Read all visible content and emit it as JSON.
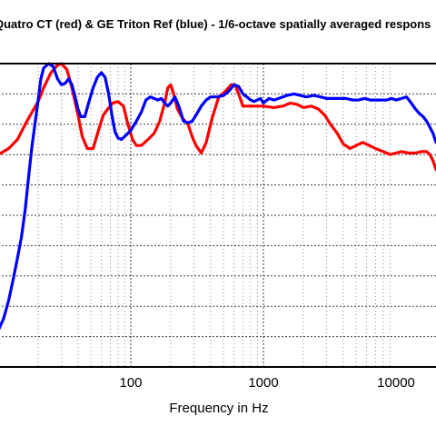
{
  "chart_data": {
    "type": "line",
    "title": "Quatro CT (red) & GE Triton Ref (blue) - 1/6-octave spatially averaged respons",
    "xlabel": "Frequency  in Hz",
    "ylabel": "",
    "x_scale": "log",
    "xlim": [
      10,
      20000
    ],
    "ylim": [
      0,
      10
    ],
    "grid": true,
    "x_ticks": [
      {
        "value": 100,
        "label": "100"
      },
      {
        "value": 1000,
        "label": "1000"
      },
      {
        "value": 10000,
        "label": "10000"
      }
    ],
    "series": [
      {
        "color": "#ff0000",
        "points": [
          [
            10,
            7.0
          ],
          [
            12,
            7.2
          ],
          [
            14,
            7.5
          ],
          [
            16,
            8.0
          ],
          [
            18,
            8.4
          ],
          [
            20,
            8.75
          ],
          [
            22,
            9.2
          ],
          [
            25,
            9.7
          ],
          [
            28,
            9.95
          ],
          [
            30,
            10.0
          ],
          [
            33,
            9.8
          ],
          [
            36,
            9.2
          ],
          [
            40,
            8.3
          ],
          [
            43,
            7.6
          ],
          [
            47,
            7.2
          ],
          [
            52,
            7.2
          ],
          [
            57,
            7.8
          ],
          [
            62,
            8.3
          ],
          [
            67,
            8.5
          ],
          [
            73,
            8.7
          ],
          [
            80,
            8.75
          ],
          [
            88,
            8.6
          ],
          [
            95,
            8.0
          ],
          [
            103,
            7.5
          ],
          [
            110,
            7.3
          ],
          [
            120,
            7.3
          ],
          [
            135,
            7.5
          ],
          [
            150,
            7.7
          ],
          [
            165,
            8.1
          ],
          [
            180,
            8.7
          ],
          [
            190,
            9.2
          ],
          [
            200,
            9.3
          ],
          [
            210,
            9.0
          ],
          [
            225,
            8.5
          ],
          [
            245,
            8.2
          ],
          [
            270,
            8.0
          ],
          [
            290,
            7.6
          ],
          [
            310,
            7.3
          ],
          [
            340,
            7.05
          ],
          [
            370,
            7.4
          ],
          [
            410,
            8.2
          ],
          [
            460,
            8.9
          ],
          [
            520,
            9.1
          ],
          [
            570,
            9.3
          ],
          [
            610,
            9.3
          ],
          [
            650,
            9.0
          ],
          [
            700,
            8.6
          ],
          [
            800,
            8.6
          ],
          [
            900,
            8.6
          ],
          [
            1000,
            8.6
          ],
          [
            1200,
            8.55
          ],
          [
            1400,
            8.6
          ],
          [
            1600,
            8.7
          ],
          [
            1800,
            8.65
          ],
          [
            2000,
            8.55
          ],
          [
            2300,
            8.6
          ],
          [
            2600,
            8.5
          ],
          [
            2900,
            8.3
          ],
          [
            3200,
            8.0
          ],
          [
            3600,
            7.7
          ],
          [
            4000,
            7.35
          ],
          [
            4500,
            7.2
          ],
          [
            5000,
            7.3
          ],
          [
            5600,
            7.4
          ],
          [
            6300,
            7.3
          ],
          [
            7000,
            7.2
          ],
          [
            8000,
            7.1
          ],
          [
            9000,
            7.0
          ],
          [
            10000,
            7.05
          ],
          [
            11000,
            7.1
          ],
          [
            12500,
            7.05
          ],
          [
            14000,
            7.05
          ],
          [
            15500,
            7.1
          ],
          [
            17000,
            7.1
          ],
          [
            18000,
            7.0
          ],
          [
            19000,
            6.8
          ],
          [
            20000,
            6.5
          ]
        ]
      },
      {
        "color": "#0000ff",
        "points": [
          [
            10,
            1.2
          ],
          [
            11,
            1.6
          ],
          [
            12,
            2.2
          ],
          [
            13,
            2.9
          ],
          [
            14,
            3.6
          ],
          [
            15,
            4.3
          ],
          [
            16,
            5.2
          ],
          [
            17,
            6.3
          ],
          [
            18,
            7.3
          ],
          [
            20,
            8.8
          ],
          [
            21,
            9.5
          ],
          [
            22,
            9.85
          ],
          [
            24,
            10.0
          ],
          [
            26,
            9.9
          ],
          [
            28,
            9.5
          ],
          [
            30,
            9.3
          ],
          [
            32,
            9.35
          ],
          [
            34,
            9.5
          ],
          [
            36,
            9.3
          ],
          [
            38,
            8.9
          ],
          [
            40,
            8.5
          ],
          [
            42,
            8.25
          ],
          [
            45,
            8.25
          ],
          [
            48,
            8.7
          ],
          [
            52,
            9.2
          ],
          [
            56,
            9.55
          ],
          [
            60,
            9.7
          ],
          [
            64,
            9.55
          ],
          [
            68,
            9.0
          ],
          [
            72,
            8.3
          ],
          [
            76,
            7.75
          ],
          [
            80,
            7.55
          ],
          [
            85,
            7.5
          ],
          [
            90,
            7.6
          ],
          [
            95,
            7.7
          ],
          [
            100,
            7.8
          ],
          [
            110,
            8.1
          ],
          [
            120,
            8.4
          ],
          [
            130,
            8.8
          ],
          [
            140,
            8.9
          ],
          [
            150,
            8.85
          ],
          [
            160,
            8.8
          ],
          [
            170,
            8.85
          ],
          [
            180,
            8.7
          ],
          [
            190,
            8.6
          ],
          [
            200,
            8.7
          ],
          [
            215,
            8.9
          ],
          [
            230,
            8.6
          ],
          [
            250,
            8.1
          ],
          [
            270,
            8.05
          ],
          [
            290,
            8.1
          ],
          [
            310,
            8.3
          ],
          [
            340,
            8.6
          ],
          [
            370,
            8.8
          ],
          [
            400,
            8.9
          ],
          [
            450,
            8.9
          ],
          [
            500,
            8.95
          ],
          [
            550,
            9.1
          ],
          [
            600,
            9.3
          ],
          [
            650,
            9.25
          ],
          [
            700,
            9.0
          ],
          [
            750,
            8.9
          ],
          [
            800,
            8.8
          ],
          [
            850,
            8.75
          ],
          [
            900,
            8.8
          ],
          [
            950,
            8.85
          ],
          [
            1000,
            8.7
          ],
          [
            1100,
            8.85
          ],
          [
            1200,
            8.8
          ],
          [
            1300,
            8.85
          ],
          [
            1500,
            8.95
          ],
          [
            1700,
            9.0
          ],
          [
            1900,
            8.95
          ],
          [
            2100,
            8.9
          ],
          [
            2400,
            8.95
          ],
          [
            2700,
            8.9
          ],
          [
            3000,
            8.85
          ],
          [
            3400,
            8.85
          ],
          [
            3800,
            8.85
          ],
          [
            4200,
            8.85
          ],
          [
            4700,
            8.8
          ],
          [
            5200,
            8.8
          ],
          [
            5800,
            8.85
          ],
          [
            6400,
            8.8
          ],
          [
            7000,
            8.8
          ],
          [
            7700,
            8.8
          ],
          [
            8500,
            8.8
          ],
          [
            9300,
            8.85
          ],
          [
            10000,
            8.8
          ],
          [
            11000,
            8.85
          ],
          [
            12000,
            8.9
          ],
          [
            13000,
            8.7
          ],
          [
            14000,
            8.5
          ],
          [
            15000,
            8.35
          ],
          [
            16000,
            8.25
          ],
          [
            17000,
            8.1
          ],
          [
            18000,
            7.9
          ],
          [
            19000,
            7.7
          ],
          [
            20000,
            7.4
          ]
        ]
      }
    ]
  }
}
